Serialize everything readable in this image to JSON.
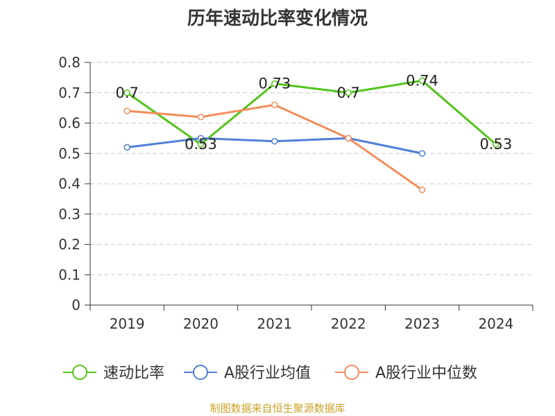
{
  "chart_data": {
    "type": "line",
    "title": "历年速动比率变化情况",
    "categories": [
      "2019",
      "2020",
      "2021",
      "2022",
      "2023",
      "2024"
    ],
    "ylim": [
      0,
      0.8
    ],
    "yticks": [
      "0",
      "0.1",
      "0.2",
      "0.3",
      "0.4",
      "0.5",
      "0.6",
      "0.7",
      "0.8"
    ],
    "grid": "horizontal dashed",
    "legend_position": "bottom",
    "series": [
      {
        "name": "速动比率",
        "color": "#52c41a",
        "values": [
          0.7,
          0.53,
          0.73,
          0.7,
          0.74,
          0.53
        ],
        "labels": [
          "0.7",
          "0.53",
          "0.73",
          "0.7",
          "0.74",
          "0.53"
        ]
      },
      {
        "name": "A股行业均值",
        "color": "#4e7fd6",
        "values": [
          0.52,
          0.55,
          0.54,
          0.55,
          0.5,
          null
        ]
      },
      {
        "name": "A股行业中位数",
        "color": "#f38c5a",
        "values": [
          0.64,
          0.62,
          0.66,
          0.55,
          0.38,
          null
        ]
      }
    ]
  },
  "source": {
    "text": "制图数据来自恒生聚源数据库",
    "color": "#c9a227"
  }
}
